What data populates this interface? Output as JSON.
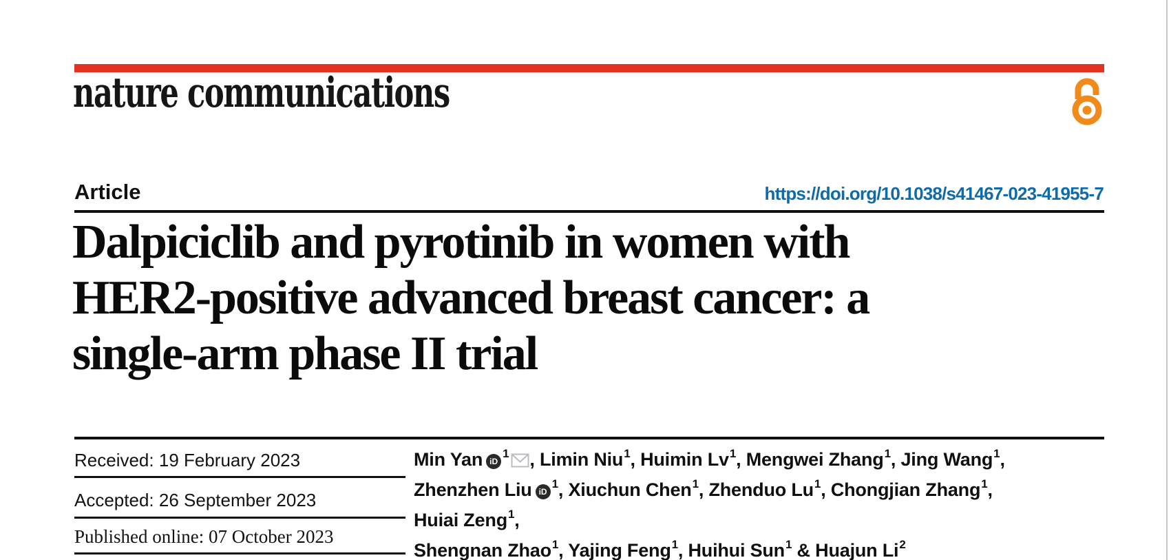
{
  "journal": {
    "logo_text": "nature communications"
  },
  "colors": {
    "brand_red": "#e33122",
    "open_access_orange": "#ef8a1b",
    "doi_blue": "#0f6aa9",
    "envelope_gray": "#b9bcc0",
    "page_edge_gray": "#c6c6c6"
  },
  "header": {
    "article_label": "Article",
    "doi": "https://doi.org/10.1038/s41467-023-41955-7"
  },
  "title": {
    "lines": [
      "Dalpiciclib and pyrotinib in women with",
      "HER2-positive advanced breast cancer: a",
      "single-arm phase II trial"
    ]
  },
  "dates": [
    {
      "label": "Received:",
      "value": "19 February 2023"
    },
    {
      "label": "Accepted:",
      "value": "26 September 2023"
    },
    {
      "label": "Published online:",
      "value": "07 October 2023"
    }
  ],
  "authors": {
    "orcid_label": "iD",
    "list": [
      {
        "name": "Min Yan",
        "sup": "1",
        "orcid": true,
        "email": true,
        "after": ", "
      },
      {
        "name": "Limin Niu",
        "sup": "1",
        "after": ", "
      },
      {
        "name": "Huimin Lv",
        "sup": "1",
        "after": ", "
      },
      {
        "name": "Mengwei Zhang",
        "sup": "1",
        "after": ", "
      },
      {
        "name": "Jing Wang",
        "sup": "1",
        "after": ",",
        "break": true
      },
      {
        "name": "Zhenzhen Liu",
        "sup": "1",
        "orcid": true,
        "after": ", "
      },
      {
        "name": "Xiuchun Chen",
        "sup": "1",
        "after": ", "
      },
      {
        "name": "Zhenduo Lu",
        "sup": "1",
        "after": ", "
      },
      {
        "name": "Chongjian Zhang",
        "sup": "1",
        "after": ", "
      },
      {
        "name": "Huiai Zeng",
        "sup": "1",
        "after": ",",
        "break": true
      },
      {
        "name": "Shengnan Zhao",
        "sup": "1",
        "after": ", "
      },
      {
        "name": "Yajing Feng",
        "sup": "1",
        "after": ", "
      },
      {
        "name": "Huihui Sun",
        "sup": "1",
        "after": " & "
      },
      {
        "name": "Huajun Li",
        "sup": "2",
        "after": ""
      }
    ]
  }
}
